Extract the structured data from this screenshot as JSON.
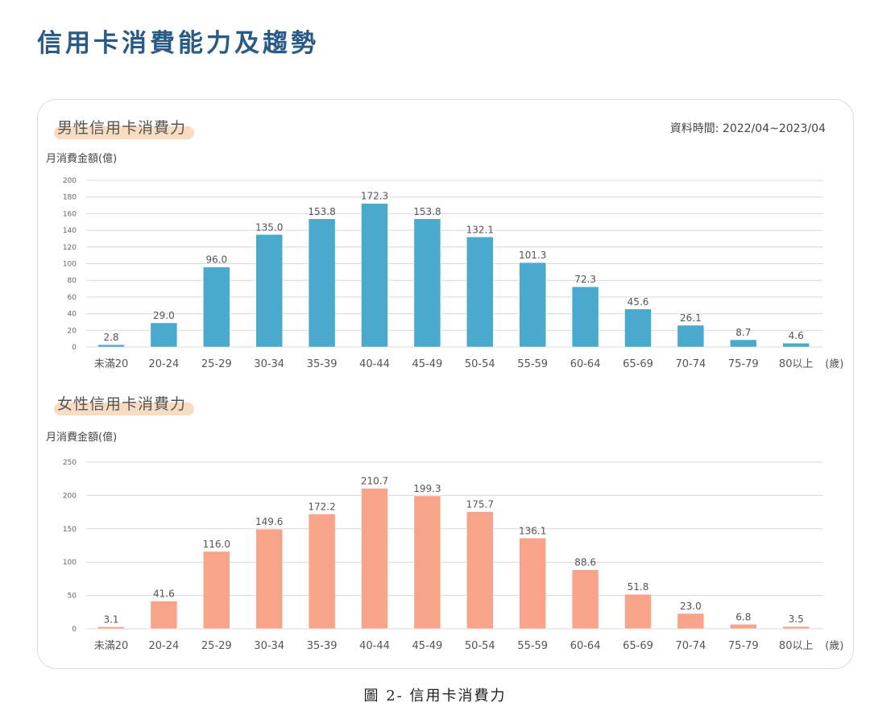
{
  "page": {
    "title": "信用卡消費能力及趨勢",
    "caption": "圖 2- 信用卡消費力",
    "date_range": "資料時間: 2022/04~2023/04"
  },
  "chart_data": [
    {
      "type": "bar",
      "title": "男性信用卡消費力",
      "ylabel": "月消費金額(億)",
      "unit_label": "(歲)",
      "categories": [
        "未滿20",
        "20-24",
        "25-29",
        "30-34",
        "35-39",
        "40-44",
        "45-49",
        "50-54",
        "55-59",
        "60-64",
        "65-69",
        "70-74",
        "75-79",
        "80以上"
      ],
      "values": [
        2.8,
        29.0,
        96.0,
        135.0,
        153.8,
        172.3,
        153.8,
        132.1,
        101.3,
        72.3,
        45.6,
        26.1,
        8.7,
        4.6
      ],
      "value_labels": [
        "2.8",
        "29.0",
        "96.0",
        "135.0",
        "153.8",
        "172.3",
        "153.8",
        "132.1",
        "101.3",
        "72.3",
        "45.6",
        "26.1",
        "8.7",
        "4.6"
      ],
      "ylim": [
        0,
        200
      ],
      "yticks": [
        0,
        20,
        40,
        60,
        80,
        100,
        120,
        140,
        160,
        180,
        200
      ],
      "color": "#4aaacd",
      "grid": true
    },
    {
      "type": "bar",
      "title": "女性信用卡消費力",
      "ylabel": "月消費金額(億)",
      "unit_label": "(歲)",
      "categories": [
        "未滿20",
        "20-24",
        "25-29",
        "30-34",
        "35-39",
        "40-44",
        "45-49",
        "50-54",
        "55-59",
        "60-64",
        "65-69",
        "70-74",
        "75-79",
        "80以上"
      ],
      "values": [
        3.1,
        41.6,
        116.0,
        149.6,
        172.2,
        210.7,
        199.3,
        175.7,
        136.1,
        88.6,
        51.8,
        23.0,
        6.8,
        3.5
      ],
      "value_labels": [
        "3.1",
        "41.6",
        "116.0",
        "149.6",
        "172.2",
        "210.7",
        "199.3",
        "175.7",
        "136.1",
        "88.6",
        "51.8",
        "23.0",
        "6.8",
        "3.5"
      ],
      "ylim": [
        0,
        250
      ],
      "yticks": [
        0,
        50,
        100,
        150,
        200,
        250
      ],
      "color": "#f7a48b",
      "grid": true
    }
  ]
}
